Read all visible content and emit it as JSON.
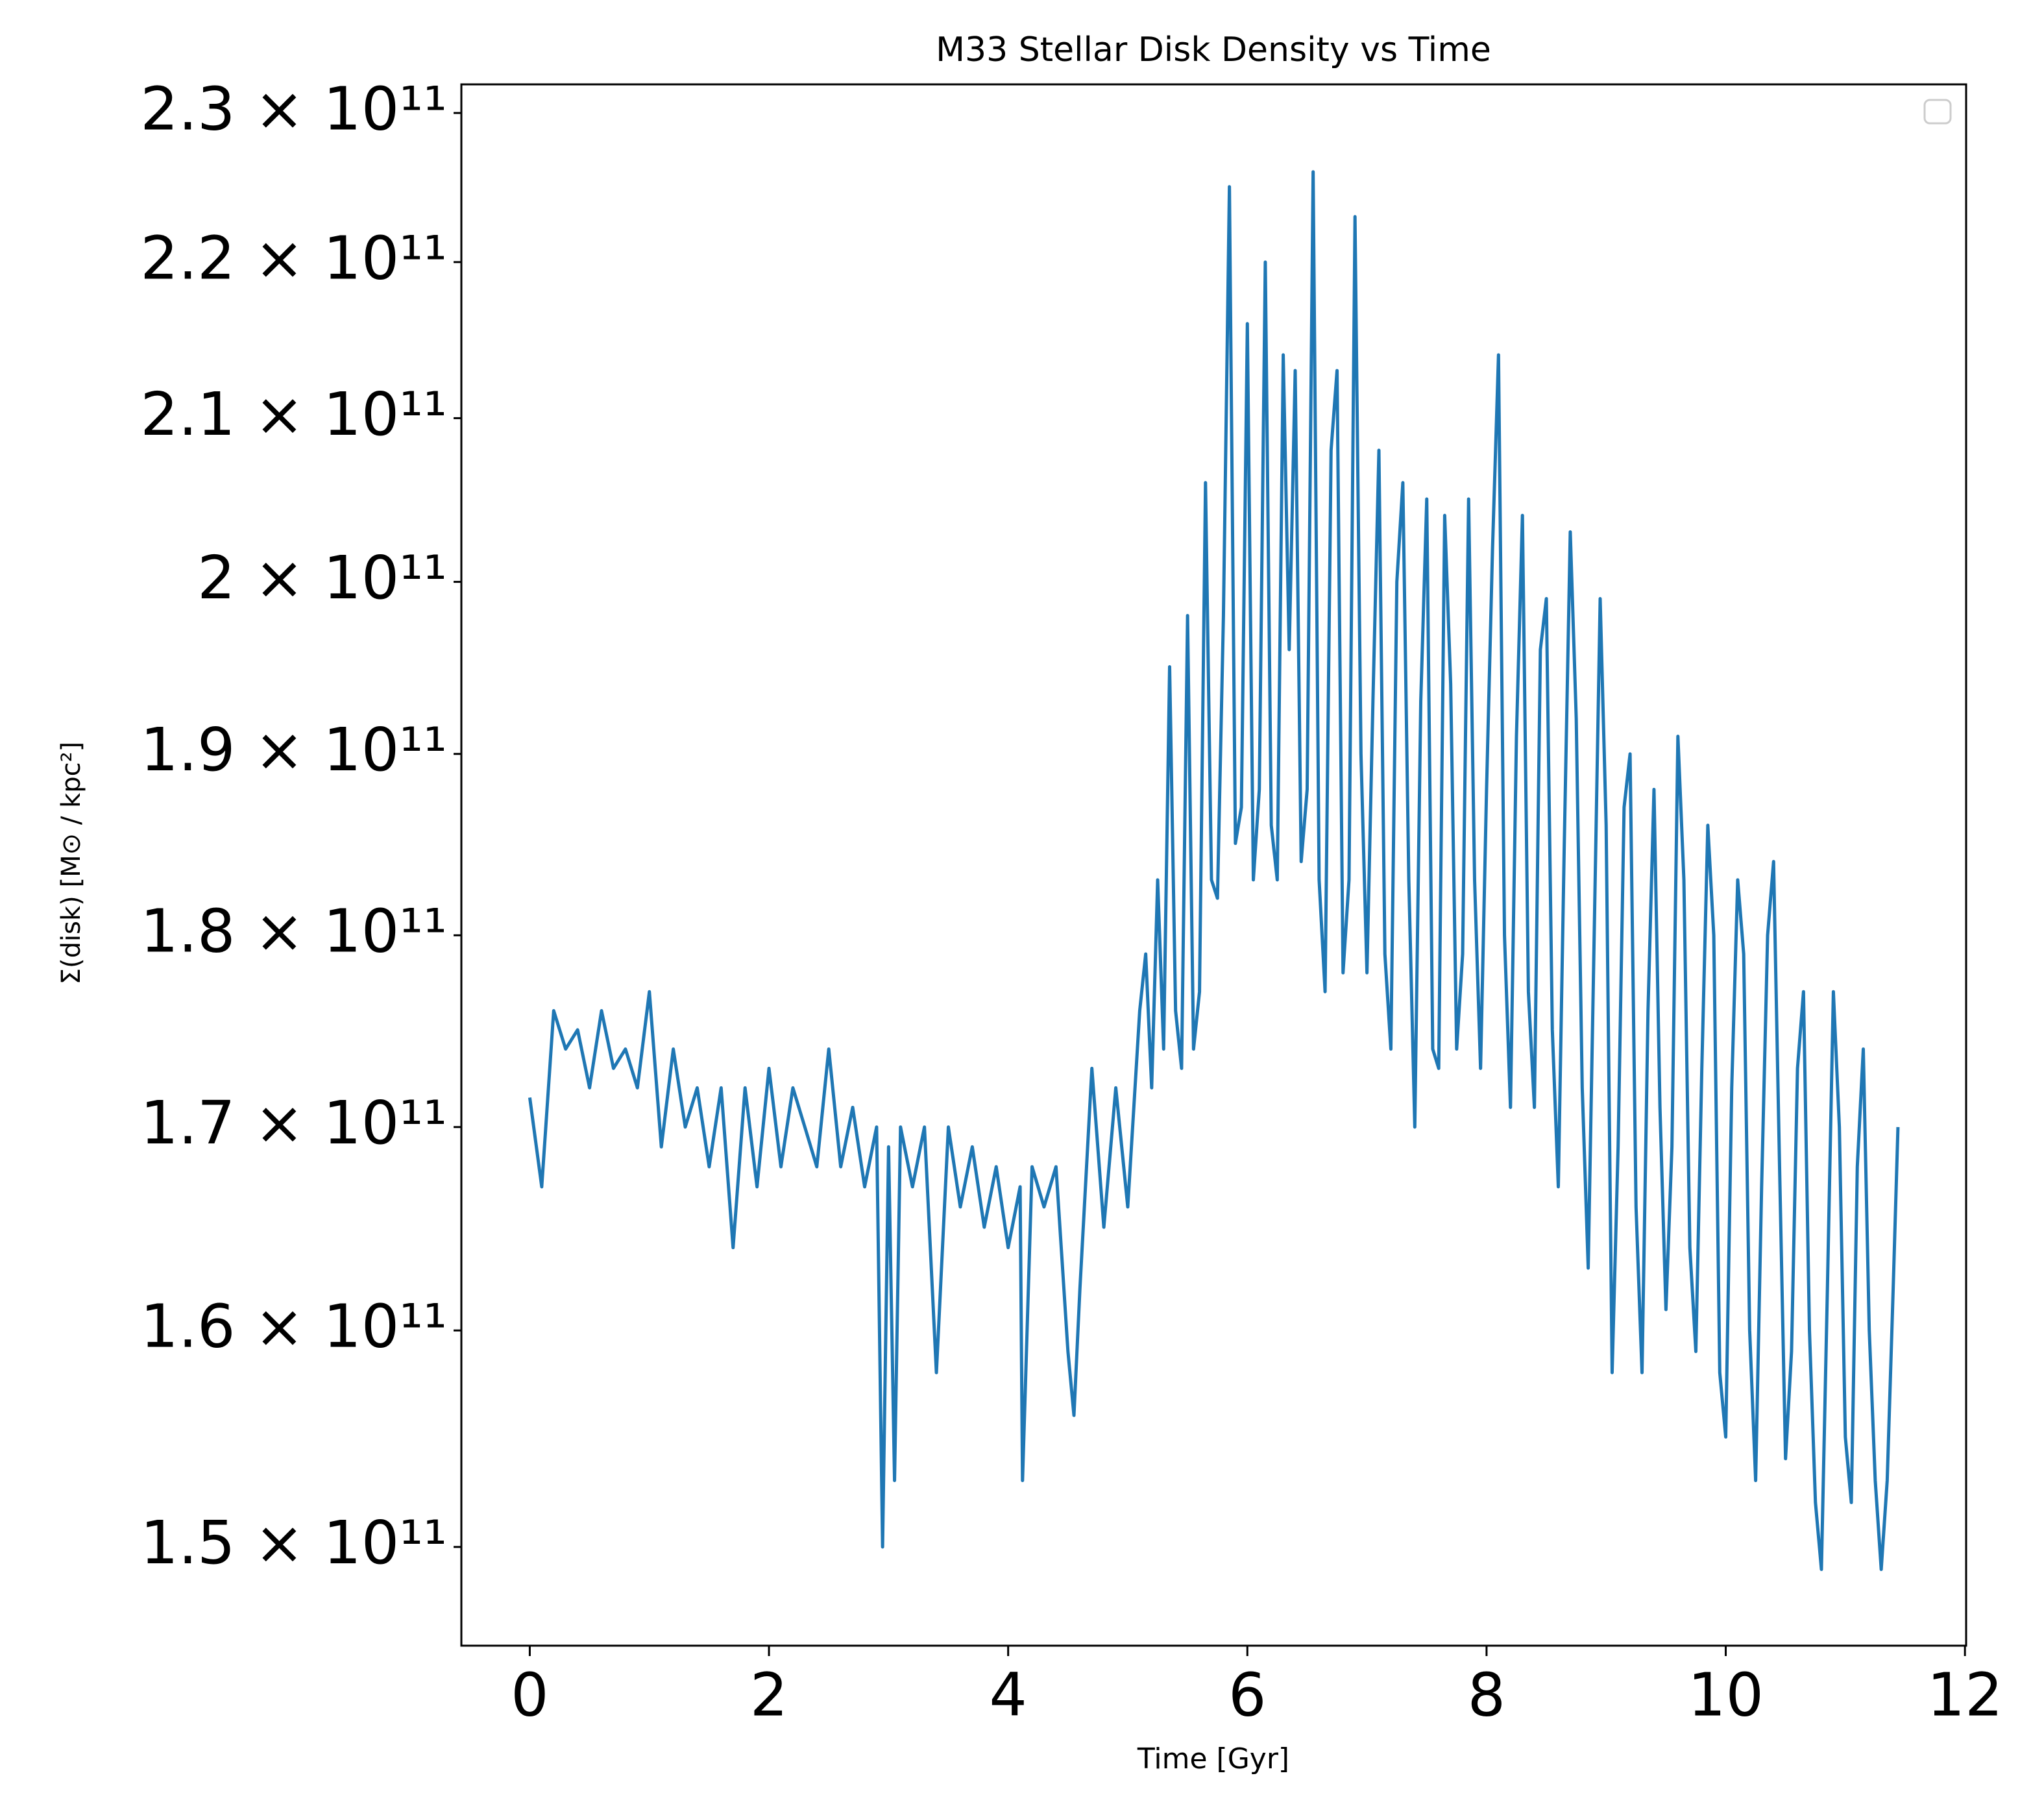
{
  "chart_data": {
    "type": "line",
    "title": "M33 Stellar Disk Density vs Time",
    "xlabel": "Time [Gyr]",
    "ylabel": "Σ(disk) [M⊙ / kpc²]",
    "color": "#1f77b4",
    "yscale": "log",
    "legend": "upper right",
    "xlim": [
      -0.572,
      12.01
    ],
    "ylim": [
      145650000000.0,
      231970000000.0
    ],
    "xticks": [
      0,
      2,
      4,
      6,
      8,
      10,
      12
    ],
    "yticks": [
      {
        "value": 150000000000.0,
        "label": "1.5 × 10¹¹"
      },
      {
        "value": 160000000000.0,
        "label": "1.6 × 10¹¹"
      },
      {
        "value": 170000000000.0,
        "label": "1.7 × 10¹¹"
      },
      {
        "value": 180000000000.0,
        "label": "1.8 × 10¹¹"
      },
      {
        "value": 190000000000.0,
        "label": "1.9 × 10¹¹"
      },
      {
        "value": 200000000000.0,
        "label": "2 × 10¹¹"
      },
      {
        "value": 210000000000.0,
        "label": "2.1 × 10¹¹"
      },
      {
        "value": 220000000000.0,
        "label": "2.2 × 10¹¹"
      },
      {
        "value": 230000000000.0,
        "label": "2.3 × 10¹¹"
      }
    ],
    "x": [
      0,
      0.1,
      0.2,
      0.3,
      0.4,
      0.5,
      0.6,
      0.7,
      0.8,
      0.9,
      1.0,
      1.1,
      1.2,
      1.3,
      1.4,
      1.5,
      1.6,
      1.7,
      1.8,
      1.9,
      2.0,
      2.1,
      2.2,
      2.3,
      2.4,
      2.5,
      2.6,
      2.7,
      2.8,
      2.9,
      2.95,
      3.0,
      3.05,
      3.1,
      3.2,
      3.3,
      3.4,
      3.5,
      3.6,
      3.7,
      3.8,
      3.9,
      4.0,
      4.1,
      4.12,
      4.2,
      4.3,
      4.4,
      4.5,
      4.55,
      4.6,
      4.7,
      4.8,
      4.9,
      5.0,
      5.1,
      5.15,
      5.2,
      5.25,
      5.3,
      5.35,
      5.4,
      5.45,
      5.5,
      5.55,
      5.6,
      5.65,
      5.7,
      5.75,
      5.8,
      5.85,
      5.9,
      5.95,
      6.0,
      6.05,
      6.1,
      6.15,
      6.2,
      6.25,
      6.3,
      6.35,
      6.4,
      6.45,
      6.5,
      6.55,
      6.6,
      6.65,
      6.7,
      6.75,
      6.8,
      6.85,
      6.9,
      6.95,
      7.0,
      7.05,
      7.1,
      7.15,
      7.2,
      7.25,
      7.3,
      7.35,
      7.4,
      7.45,
      7.5,
      7.55,
      7.6,
      7.65,
      7.7,
      7.75,
      7.8,
      7.85,
      7.9,
      7.95,
      8.0,
      8.05,
      8.1,
      8.15,
      8.2,
      8.25,
      8.3,
      8.35,
      8.4,
      8.45,
      8.5,
      8.55,
      8.6,
      8.65,
      8.7,
      8.75,
      8.8,
      8.85,
      8.9,
      8.95,
      9.0,
      9.05,
      9.1,
      9.15,
      9.2,
      9.25,
      9.3,
      9.35,
      9.4,
      9.45,
      9.5,
      9.55,
      9.6,
      9.65,
      9.7,
      9.75,
      9.8,
      9.85,
      9.9,
      9.95,
      10.0,
      10.05,
      10.1,
      10.15,
      10.2,
      10.25,
      10.3,
      10.35,
      10.4,
      10.45,
      10.5,
      10.55,
      10.6,
      10.65,
      10.7,
      10.75,
      10.8,
      10.85,
      10.9,
      10.95,
      11.0,
      11.05,
      11.1,
      11.15,
      11.2,
      11.25,
      11.3,
      11.35,
      11.4,
      11.44
    ],
    "values": [
      171500000000.0,
      167000000000.0,
      176000000000.0,
      174000000000.0,
      175000000000.0,
      172000000000.0,
      176000000000.0,
      173000000000.0,
      174000000000.0,
      172000000000.0,
      177000000000.0,
      169000000000.0,
      174000000000.0,
      170000000000.0,
      172000000000.0,
      168000000000.0,
      172000000000.0,
      164000000000.0,
      172000000000.0,
      167000000000.0,
      173000000000.0,
      168000000000.0,
      172000000000.0,
      170000000000.0,
      168000000000.0,
      174000000000.0,
      168000000000.0,
      171000000000.0,
      167000000000.0,
      170000000000.0,
      150000000000.0,
      169000000000.0,
      153000000000.0,
      170000000000.0,
      167000000000.0,
      170000000000.0,
      158000000000.0,
      170000000000.0,
      166000000000.0,
      169000000000.0,
      165000000000.0,
      168000000000.0,
      164000000000.0,
      167000000000.0,
      153000000000.0,
      168000000000.0,
      166000000000.0,
      168000000000.0,
      159000000000.0,
      156000000000.0,
      162000000000.0,
      173000000000.0,
      165000000000.0,
      172000000000.0,
      166000000000.0,
      176000000000.0,
      179000000000.0,
      172000000000.0,
      183000000000.0,
      174000000000.0,
      195000000000.0,
      176000000000.0,
      173000000000.0,
      198000000000.0,
      174000000000.0,
      177000000000.0,
      206000000000.0,
      183000000000.0,
      182000000000.0,
      198000000000.0,
      225000000000.0,
      185000000000.0,
      187000000000.0,
      216000000000.0,
      183000000000.0,
      188000000000.0,
      220000000000.0,
      186000000000.0,
      183000000000.0,
      214000000000.0,
      196000000000.0,
      213000000000.0,
      184000000000.0,
      188000000000.0,
      226000000000.0,
      183000000000.0,
      177000000000.0,
      208000000000.0,
      213000000000.0,
      178000000000.0,
      183000000000.0,
      223000000000.0,
      190000000000.0,
      178000000000.0,
      193000000000.0,
      208000000000.0,
      179000000000.0,
      174000000000.0,
      200000000000.0,
      206000000000.0,
      183000000000.0,
      170000000000.0,
      193000000000.0,
      205000000000.0,
      174000000000.0,
      173000000000.0,
      204000000000.0,
      194000000000.0,
      174000000000.0,
      179000000000.0,
      205000000000.0,
      183000000000.0,
      173000000000.0,
      188000000000.0,
      202000000000.0,
      214000000000.0,
      180000000000.0,
      171000000000.0,
      191000000000.0,
      204000000000.0,
      177000000000.0,
      171000000000.0,
      196000000000.0,
      199000000000.0,
      175000000000.0,
      167000000000.0,
      185000000000.0,
      203000000000.0,
      192000000000.0,
      172000000000.0,
      163000000000.0,
      180000000000.0,
      199000000000.0,
      186000000000.0,
      158000000000.0,
      169000000000.0,
      187000000000.0,
      190000000000.0,
      166000000000.0,
      158000000000.0,
      176000000000.0,
      188000000000.0,
      171000000000.0,
      161000000000.0,
      169000000000.0,
      191000000000.0,
      183000000000.0,
      164000000000.0,
      159000000000.0,
      173000000000.0,
      186000000000.0,
      180000000000.0,
      158000000000.0,
      155000000000.0,
      172000000000.0,
      183000000000.0,
      179000000000.0,
      160000000000.0,
      153000000000.0,
      167000000000.0,
      180000000000.0,
      184000000000.0,
      168000000000.0,
      154000000000.0,
      159000000000.0,
      173000000000.0,
      177000000000.0,
      160000000000.0,
      152000000000.0,
      149000000000.0,
      162000000000.0,
      177000000000.0,
      170000000000.0,
      155000000000.0,
      152000000000.0,
      168000000000.0,
      174000000000.0,
      160000000000.0,
      153000000000.0,
      149000000000.0,
      153000000000.0,
      162000000000.0,
      170000000000.0
    ]
  }
}
